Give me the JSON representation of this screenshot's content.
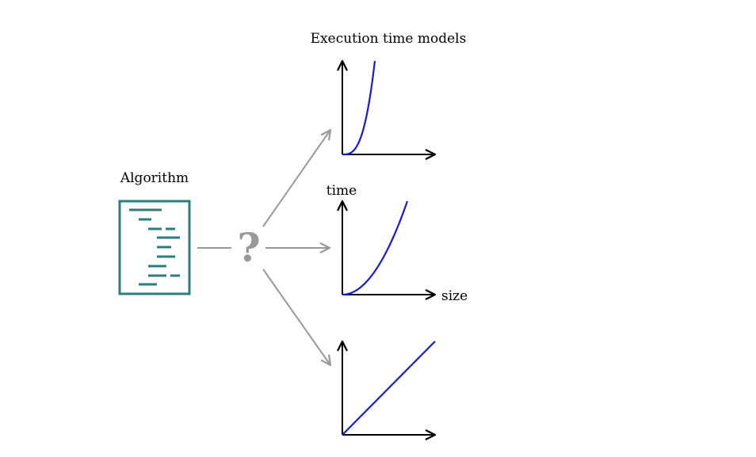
{
  "title": "Execution time models",
  "algorithm_label": "Algorithm",
  "unknown_mark": "?",
  "axis_labels": {
    "y": "time",
    "x": "size"
  },
  "colors": {
    "algorithm": "#2e7d7d",
    "curve": "#1a1ad6",
    "axis": "#000000",
    "connector": "#999999"
  },
  "models": [
    {
      "kind": "cubic"
    },
    {
      "kind": "quadratic"
    },
    {
      "kind": "linear"
    }
  ]
}
